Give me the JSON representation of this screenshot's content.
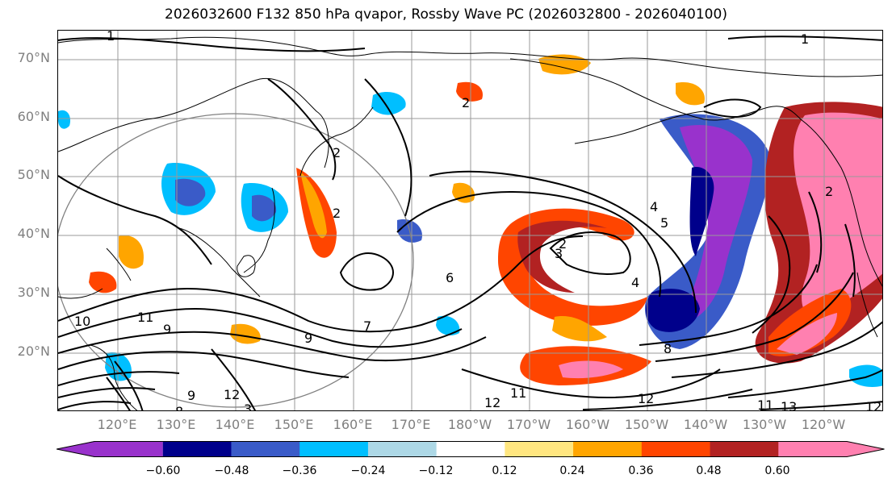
{
  "title": "2026032600 F132 850 hPa qvapor, Rossby Wave PC (2026032800 - 2026040100)",
  "lat_labels": [
    "70°N",
    "60°N",
    "50°N",
    "40°N",
    "30°N",
    "20°N"
  ],
  "lon_labels": [
    "120°E",
    "130°E",
    "140°E",
    "150°E",
    "160°E",
    "170°E",
    "180°W",
    "170°W",
    "160°W",
    "150°W",
    "140°W",
    "130°W",
    "120°W"
  ],
  "colorbar": {
    "colors": [
      "#9932cc",
      "#00008b",
      "#3a5bc8",
      "#00bfff",
      "#add8e6",
      "#ffffff",
      "#ffe680",
      "#ffa500",
      "#ff4500",
      "#b22222",
      "#ff80b0"
    ],
    "ticks": [
      "−0.60",
      "−0.48",
      "−0.36",
      "−0.24",
      "−0.12",
      "0.12",
      "0.24",
      "0.36",
      "0.48",
      "0.60"
    ]
  },
  "contour_labels": [
    "1",
    "2",
    "3",
    "4",
    "5",
    "6",
    "7",
    "8",
    "9",
    "10",
    "11",
    "12",
    "13"
  ],
  "contour_label_instances": [
    "1",
    "1",
    "2",
    "2",
    "2",
    "2",
    "2",
    "3",
    "3",
    "4",
    "4",
    "5",
    "6",
    "7",
    "8",
    "8",
    "9",
    "9",
    "9",
    "10",
    "11",
    "11",
    "11",
    "12",
    "12",
    "12",
    "12",
    "13"
  ]
}
